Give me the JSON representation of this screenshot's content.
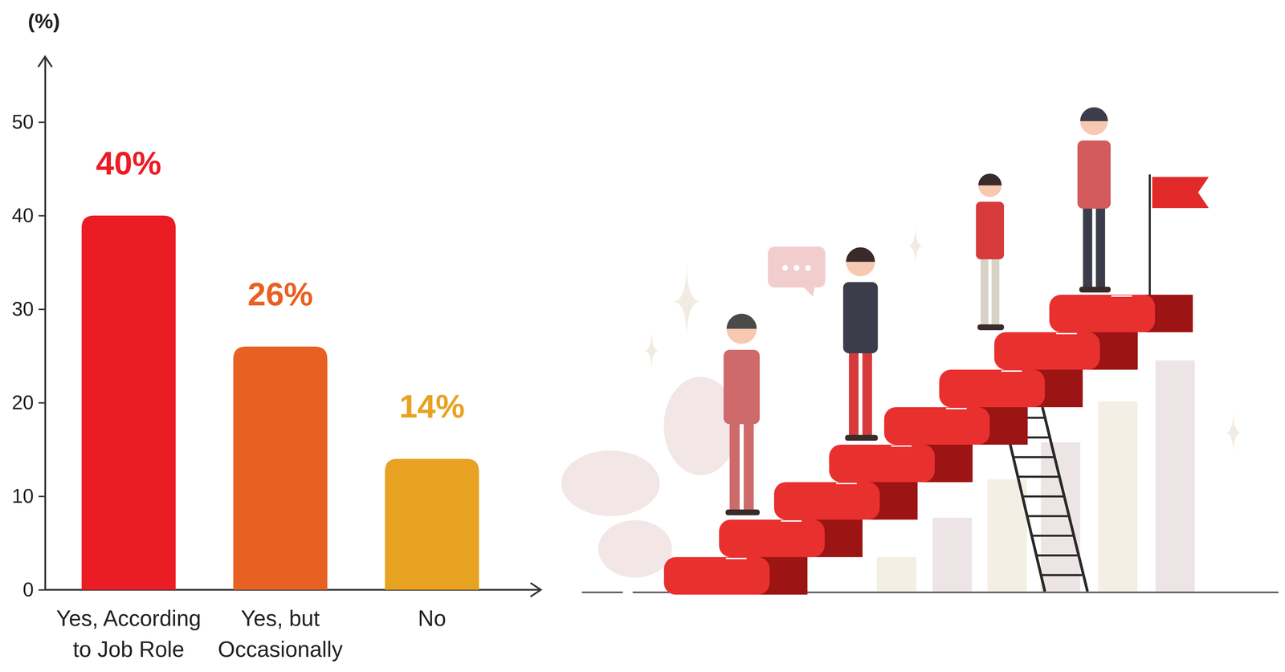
{
  "chart_data": {
    "type": "bar",
    "y_label": "(%)",
    "categories": [
      "Yes, According to Job Role",
      "Yes, but Occasionally",
      "No"
    ],
    "values": [
      40,
      26,
      14
    ],
    "value_labels": [
      "40%",
      "26%",
      "14%"
    ],
    "colors": [
      "#ec1c24",
      "#e86122",
      "#e8a222"
    ],
    "ylim": [
      0,
      57
    ],
    "yticks": [
      0,
      10,
      20,
      30,
      40,
      50
    ],
    "data_labels": true,
    "grid": false
  }
}
